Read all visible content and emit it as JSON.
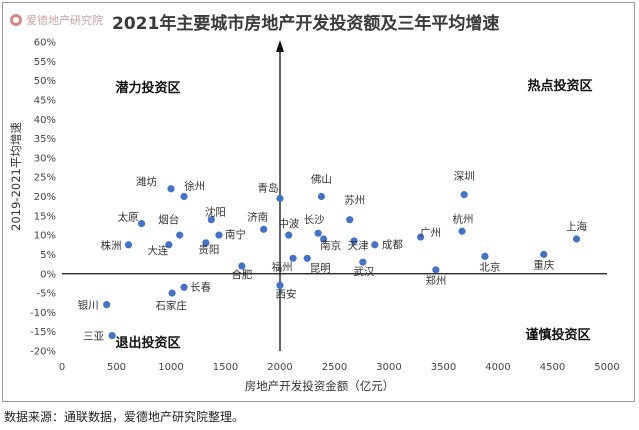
{
  "logo_text": "爱德地产研究院",
  "source_note": "数据来源：通联数据，爱德地产研究院整理。",
  "chart_data": {
    "type": "scatter",
    "title": "2021年主要城市房地产开发投资额及三年平均增速",
    "xlabel": "房地产开发投资金额（亿元）",
    "ylabel": "2019-2021平均增速",
    "xlim": [
      0,
      5000
    ],
    "ylim": [
      -0.2,
      0.6
    ],
    "x_ticks": [
      "0",
      "500",
      "1000",
      "1500",
      "2000",
      "2500",
      "3000",
      "3500",
      "4000",
      "4500",
      "5000"
    ],
    "y_ticks": [
      "-20%",
      "-15%",
      "-10%",
      "-5%",
      "0%",
      "5%",
      "10%",
      "15%",
      "20%",
      "25%",
      "30%",
      "35%",
      "40%",
      "45%",
      "50%",
      "55%",
      "60%"
    ],
    "quadrant_labels": {
      "top_left": "潜力投资区",
      "top_right": "热点投资区",
      "bottom_left": "退出投资区",
      "bottom_right": "谨慎投资区"
    },
    "grid": false,
    "legend": "none",
    "marker_color": "#4472c4",
    "points": [
      {
        "name": "潍坊",
        "x": 1000,
        "y": 0.22
      },
      {
        "name": "徐州",
        "x": 1120,
        "y": 0.2
      },
      {
        "name": "太原",
        "x": 730,
        "y": 0.13
      },
      {
        "name": "烟台",
        "x": 1080,
        "y": 0.1
      },
      {
        "name": "沈阳",
        "x": 1370,
        "y": 0.14
      },
      {
        "name": "株洲",
        "x": 610,
        "y": 0.075
      },
      {
        "name": "大连",
        "x": 980,
        "y": 0.075
      },
      {
        "name": "贵阳",
        "x": 1320,
        "y": 0.08
      },
      {
        "name": "南宁",
        "x": 1440,
        "y": 0.1
      },
      {
        "name": "济南",
        "x": 1850,
        "y": 0.115
      },
      {
        "name": "青岛",
        "x": 2000,
        "y": 0.195
      },
      {
        "name": "中波",
        "x": 2080,
        "y": 0.1
      },
      {
        "name": "佛山",
        "x": 2380,
        "y": 0.2
      },
      {
        "name": "长沙",
        "x": 2350,
        "y": 0.105
      },
      {
        "name": "苏州",
        "x": 2640,
        "y": 0.14
      },
      {
        "name": "南京",
        "x": 2400,
        "y": 0.09
      },
      {
        "name": "天津",
        "x": 2680,
        "y": 0.085
      },
      {
        "name": "成都",
        "x": 2870,
        "y": 0.075
      },
      {
        "name": "合肥",
        "x": 1650,
        "y": 0.02
      },
      {
        "name": "福州",
        "x": 2120,
        "y": 0.04
      },
      {
        "name": "昆明",
        "x": 2250,
        "y": 0.04
      },
      {
        "name": "武汉",
        "x": 2760,
        "y": 0.03
      },
      {
        "name": "西安",
        "x": 2000,
        "y": -0.03
      },
      {
        "name": "广州",
        "x": 3290,
        "y": 0.095
      },
      {
        "name": "深圳",
        "x": 3690,
        "y": 0.205
      },
      {
        "name": "杭州",
        "x": 3670,
        "y": 0.11
      },
      {
        "name": "郑州",
        "x": 3430,
        "y": 0.01
      },
      {
        "name": "北京",
        "x": 3880,
        "y": 0.045
      },
      {
        "name": "重庆",
        "x": 4420,
        "y": 0.05
      },
      {
        "name": "上海",
        "x": 4720,
        "y": 0.09
      },
      {
        "name": "长春",
        "x": 1120,
        "y": -0.035
      },
      {
        "name": "石家庄",
        "x": 1010,
        "y": -0.05
      },
      {
        "name": "银川",
        "x": 410,
        "y": -0.08
      },
      {
        "name": "三亚",
        "x": 460,
        "y": -0.16
      }
    ]
  }
}
